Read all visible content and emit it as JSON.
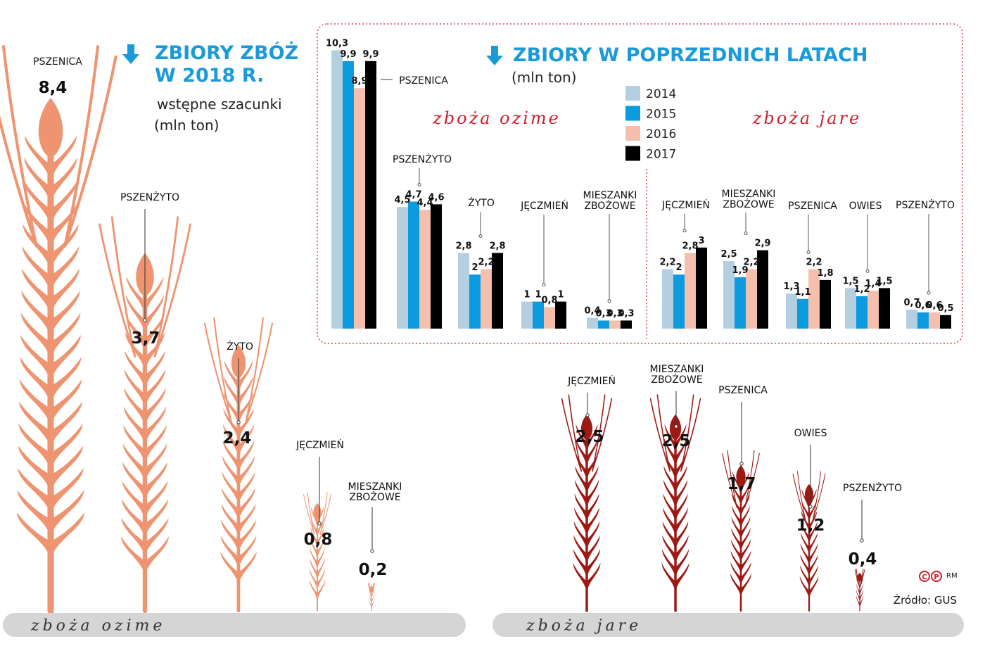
{
  "left": {
    "title_line1": "ZBIORY ZBÓŻ",
    "title_line2": "W 2018 R.",
    "subtitle1": "wstępne szacunki",
    "subtitle2": "(mln ton)"
  },
  "right": {
    "title": "ZBIORY W POPRZEDNICH LATACH",
    "subtitle": "(mln ton)"
  },
  "labels": {
    "winter": "zboża  ozime",
    "spring": "zboża  jare",
    "ground_winter": "zboża ozime",
    "ground_spring": "zboża jare",
    "source": "Źródło: GUS",
    "credit": "RM"
  },
  "colors": {
    "winter_wheat": "#ee9470",
    "spring_wheat": "#9c1914",
    "y2014": "#b3cfe0",
    "y2015": "#0d9be0",
    "y2016": "#f4bfad",
    "y2017": "#000000",
    "accent": "#1a9ad8",
    "border": "#d21e2b"
  },
  "chart_data": [
    {
      "type": "bar",
      "title": "ZBIORY ZBÓŻ W 2018 R.",
      "subtitle": "wstępne szacunki (mln ton)",
      "groups": [
        {
          "name": "zboża ozime",
          "categories": [
            "PSZENICA",
            "PSZENŻYTO",
            "ŻYTO",
            "JĘCZMIEŃ",
            "MIESZANKI ZBOŻOWE"
          ],
          "values": [
            8.4,
            3.7,
            2.4,
            0.8,
            0.2
          ],
          "labels": [
            "8,4",
            "3,7",
            "2,4",
            "0,8",
            "0,2"
          ]
        },
        {
          "name": "zboża jare",
          "categories": [
            "JĘCZMIEŃ",
            "MIESZANKI ZBOŻOWE",
            "PSZENICA",
            "OWIES",
            "PSZENŻYTO"
          ],
          "values": [
            2.5,
            2.5,
            1.7,
            1.2,
            0.4
          ],
          "labels": [
            "2,5",
            "2,5",
            "1,7",
            "1,2",
            "0,4"
          ]
        }
      ]
    },
    {
      "type": "bar",
      "title": "ZBIORY W POPRZEDNICH LATACH",
      "subtitle": "(mln ton)",
      "legend": [
        "2014",
        "2015",
        "2016",
        "2017"
      ],
      "groups": [
        {
          "name": "zboża ozime",
          "categories": [
            "PSZENICA",
            "PSZENŻYTO",
            "ŻYTO",
            "JĘCZMIEŃ",
            "MIESZANKI ZBOŻOWE"
          ],
          "series": [
            {
              "name": "2014",
              "values": [
                10.3,
                4.5,
                2.8,
                1,
                0.4
              ],
              "labels": [
                "10,3",
                "4,5",
                "2,8",
                "1",
                "0,4"
              ]
            },
            {
              "name": "2015",
              "values": [
                9.9,
                4.7,
                2,
                1,
                0.3
              ],
              "labels": [
                "9,9",
                "4,7",
                "2",
                "1",
                "0,3"
              ]
            },
            {
              "name": "2016",
              "values": [
                8.9,
                4.4,
                2.2,
                0.8,
                0.3
              ],
              "labels": [
                "8,9",
                "4,4",
                "2,2",
                "0,8",
                "0,3"
              ]
            },
            {
              "name": "2017",
              "values": [
                9.9,
                4.6,
                2.8,
                1,
                0.3
              ],
              "labels": [
                "9,9",
                "4,6",
                "2,8",
                "1",
                "0,3"
              ]
            }
          ]
        },
        {
          "name": "zboża jare",
          "categories": [
            "JĘCZMIEŃ",
            "MIESZANKI ZBOŻOWE",
            "PSZENICA",
            "OWIES",
            "PSZENŻYTO"
          ],
          "series": [
            {
              "name": "2014",
              "values": [
                2.2,
                2.5,
                1.3,
                1.5,
                0.7
              ],
              "labels": [
                "2,2",
                "2,5",
                "1,3",
                "1,5",
                "0,7"
              ]
            },
            {
              "name": "2015",
              "values": [
                2,
                1.9,
                1.1,
                1.2,
                0.6
              ],
              "labels": [
                "2",
                "1,9",
                "1,1",
                "1,2",
                "0,6"
              ]
            },
            {
              "name": "2016",
              "values": [
                2.8,
                2.2,
                2.2,
                1.4,
                0.6
              ],
              "labels": [
                "2,8",
                "2,2",
                "2,2",
                "1,4",
                "0,6"
              ]
            },
            {
              "name": "2017",
              "values": [
                3,
                2.9,
                1.8,
                1.5,
                0.5
              ],
              "labels": [
                "3",
                "2,9",
                "1,8",
                "1,5",
                "0,5"
              ]
            }
          ]
        }
      ]
    }
  ]
}
